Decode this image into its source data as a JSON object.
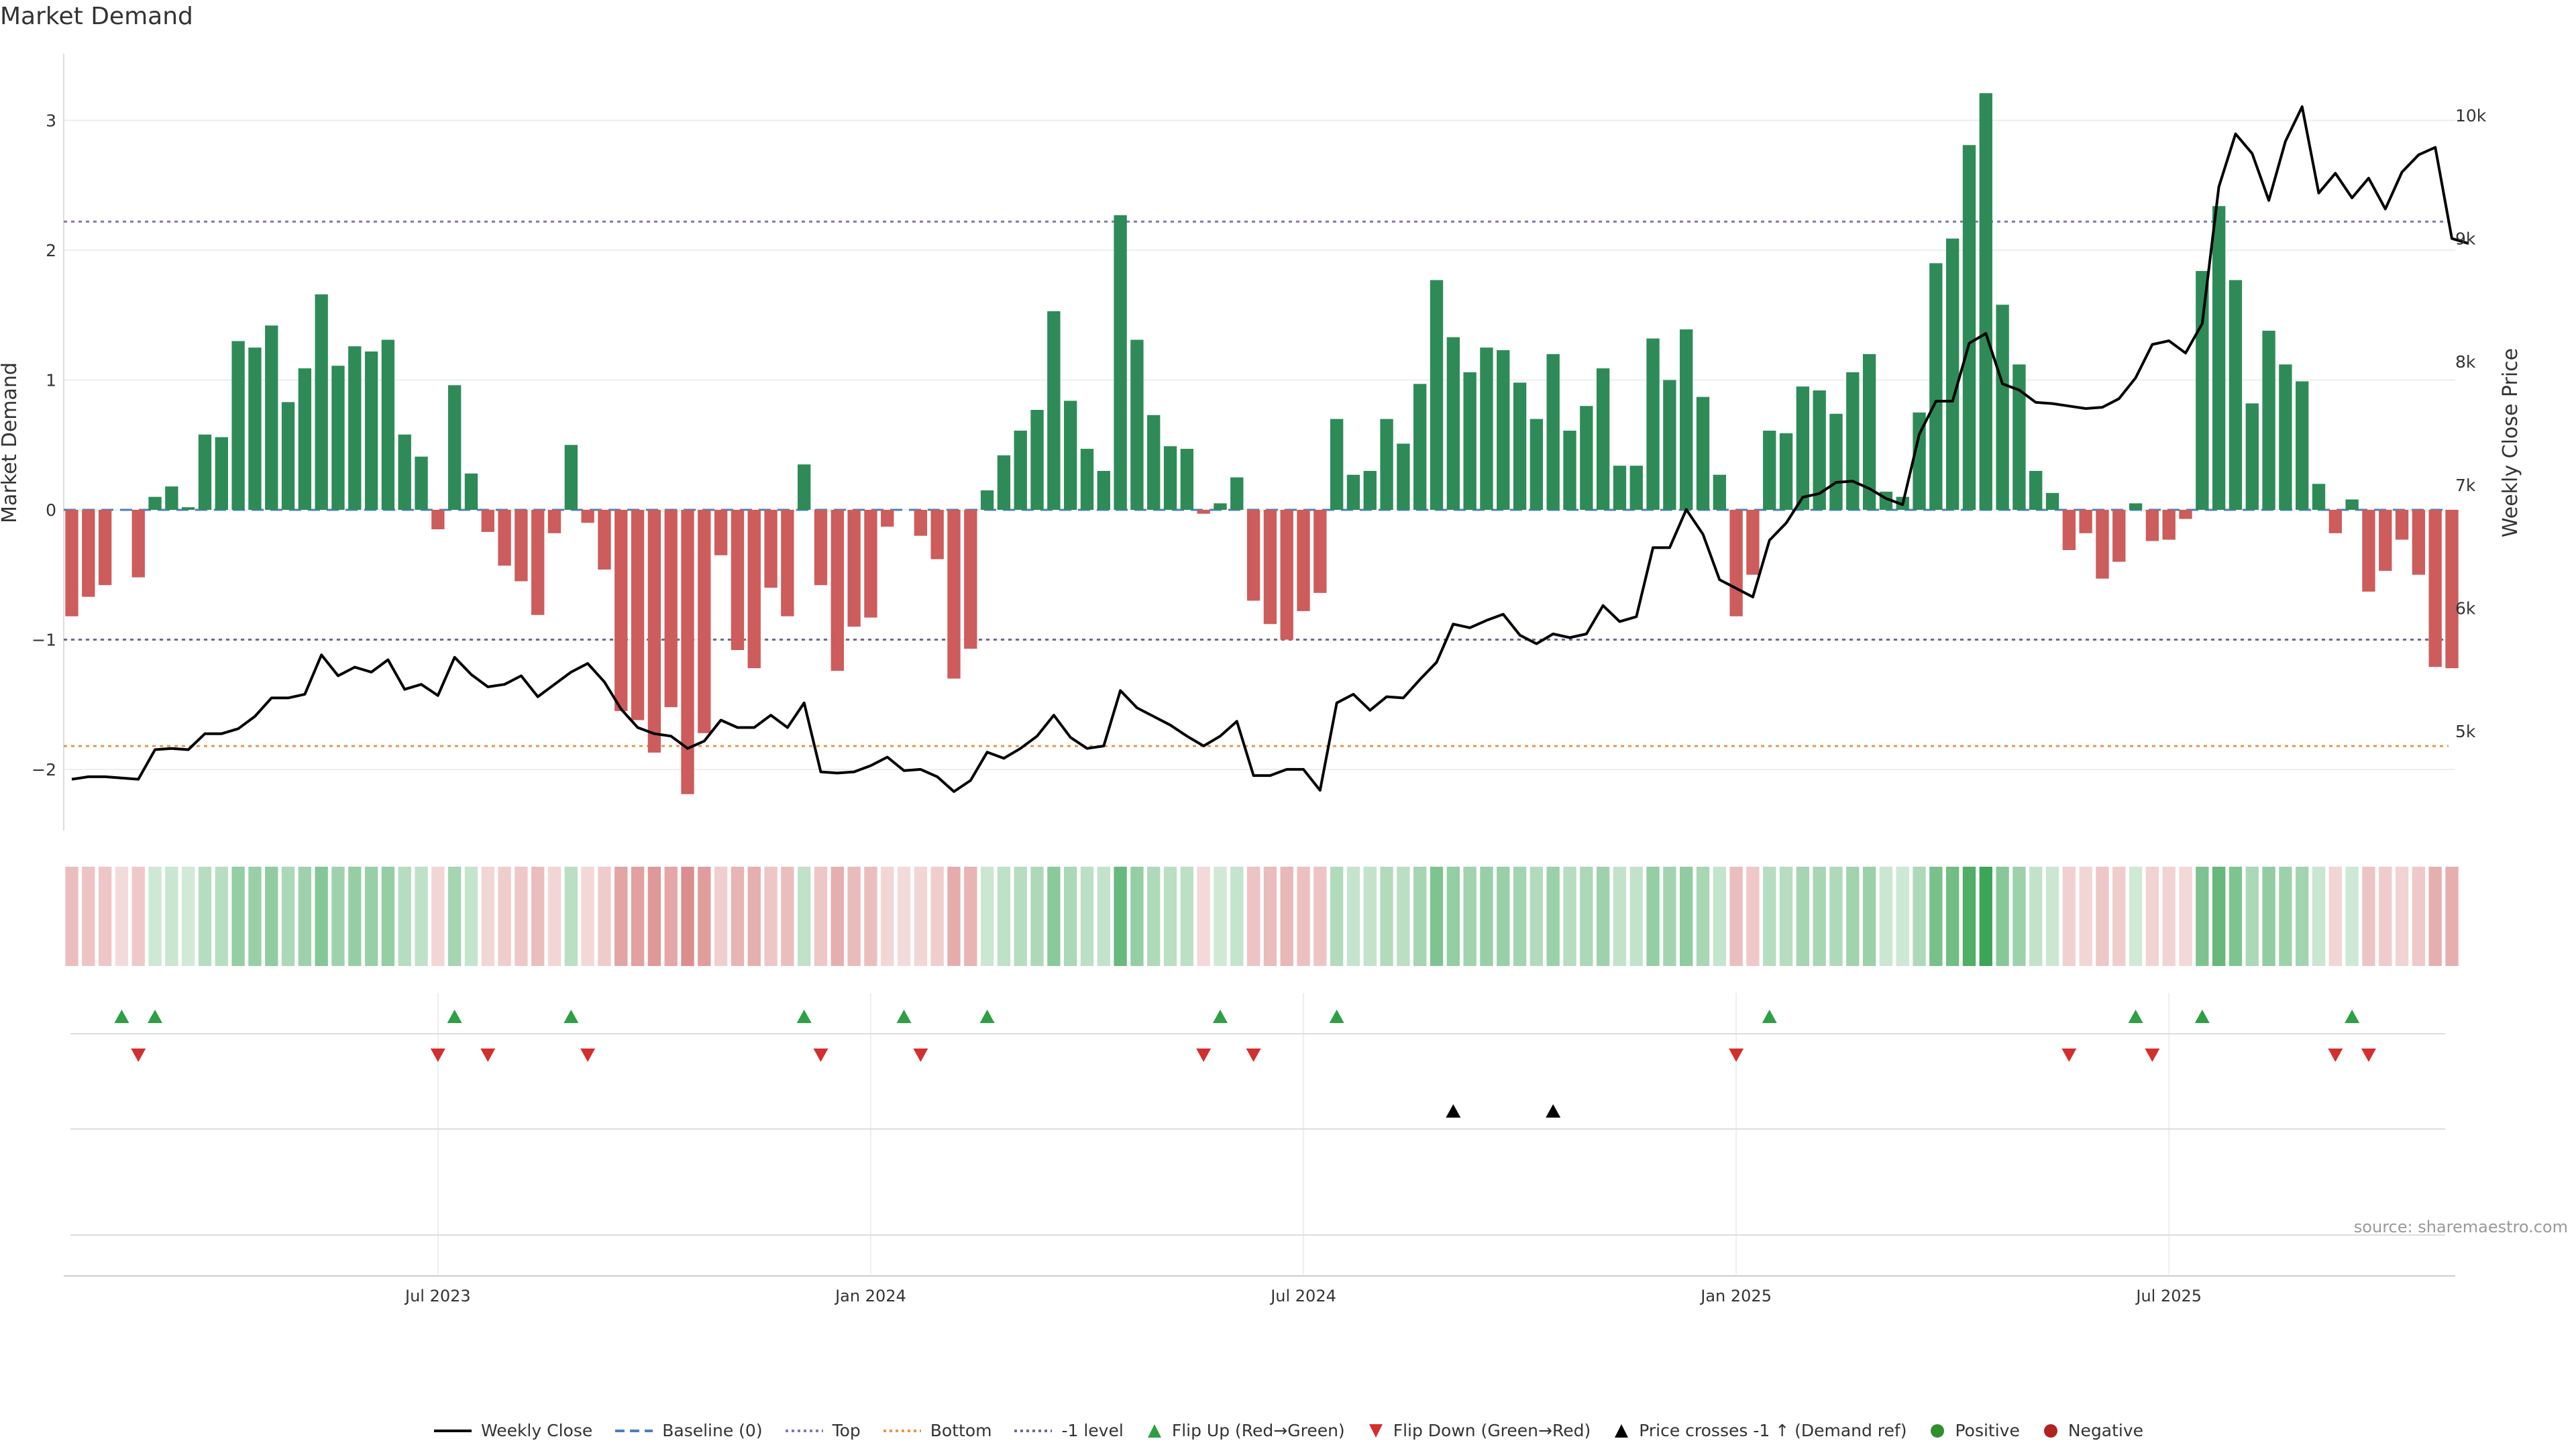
{
  "title": "Market Demand",
  "source": "source: sharemaestro.com",
  "chart_data": {
    "type": "bar",
    "title": "Market Demand",
    "ylabel_left": "Market Demand",
    "ylabel_right": "Weekly Close Price",
    "ylim_left": [
      -2.5,
      3.5
    ],
    "ylim_right": [
      4000,
      10500
    ],
    "yticks_left": [
      -2,
      -1,
      0,
      1,
      2,
      3
    ],
    "yticks_left_labels": [
      "−2",
      "−1",
      "0",
      "1",
      "2",
      "3"
    ],
    "yticks_right": [
      5000,
      6000,
      7000,
      8000,
      9000,
      10000
    ],
    "yticks_right_labels": [
      "5k",
      "6k",
      "7k",
      "8k",
      "9k",
      "10k"
    ],
    "xticks": [
      {
        "week": 22,
        "label": "Jul 2023"
      },
      {
        "week": 48,
        "label": "Jan 2024"
      },
      {
        "week": 74,
        "label": "Jul 2024"
      },
      {
        "week": 100,
        "label": "Jan 2025"
      },
      {
        "week": 126,
        "label": "Jul 2025"
      }
    ],
    "reference_lines": {
      "top": 2.22,
      "bottom": -1.82,
      "minus_one": -1,
      "baseline": 0
    },
    "demand": [
      -0.82,
      -0.67,
      -0.58,
      0.0,
      -0.52,
      0.1,
      0.18,
      0.02,
      0.58,
      0.56,
      1.3,
      1.25,
      1.42,
      0.83,
      1.09,
      1.66,
      1.11,
      1.26,
      1.22,
      1.31,
      0.58,
      0.41,
      -0.15,
      0.96,
      0.28,
      -0.17,
      -0.43,
      -0.55,
      -0.81,
      -0.18,
      0.5,
      -0.1,
      -0.46,
      -1.55,
      -1.62,
      -1.87,
      -1.52,
      -2.19,
      -1.72,
      -0.35,
      -1.08,
      -1.22,
      -0.6,
      -0.82,
      0.35,
      -0.58,
      -1.24,
      -0.9,
      -0.83,
      -0.13,
      0.0,
      -0.2,
      -0.38,
      -1.3,
      -1.07,
      0.15,
      0.42,
      0.61,
      0.77,
      1.53,
      0.84,
      0.47,
      0.3,
      2.27,
      1.31,
      0.73,
      0.49,
      0.47,
      -0.03,
      0.05,
      0.25,
      -0.7,
      -0.88,
      -1.0,
      -0.78,
      -0.64,
      0.7,
      0.27,
      0.3,
      0.7,
      0.51,
      0.97,
      1.77,
      1.33,
      1.06,
      1.25,
      1.23,
      0.98,
      0.7,
      1.2,
      0.61,
      0.8,
      1.09,
      0.34,
      0.34,
      1.32,
      1.0,
      1.39,
      0.87,
      0.27,
      -0.82,
      -0.5,
      0.61,
      0.59,
      0.95,
      0.92,
      0.74,
      1.06,
      1.2,
      0.14,
      0.1,
      0.75,
      1.9,
      2.09,
      2.81,
      3.21,
      1.58,
      1.12,
      0.3,
      0.13,
      -0.31,
      -0.18,
      -0.53,
      -0.4,
      0.05,
      -0.24,
      -0.23,
      -0.07,
      1.84,
      2.34,
      1.77,
      0.82,
      1.38,
      1.12,
      0.99,
      0.2,
      -0.18,
      0.08,
      -0.63,
      -0.47,
      -0.23,
      -0.5,
      -1.21,
      -1.22
    ],
    "weekly_close": [
      4610,
      4630,
      4630,
      4620,
      4610,
      4850,
      4860,
      4850,
      4980,
      4980,
      5020,
      5120,
      5270,
      5270,
      5300,
      5620,
      5450,
      5520,
      5480,
      5580,
      5340,
      5380,
      5290,
      5600,
      5460,
      5360,
      5380,
      5450,
      5280,
      5380,
      5480,
      5550,
      5400,
      5180,
      5030,
      4980,
      4960,
      4860,
      4920,
      5090,
      5030,
      5030,
      5130,
      5030,
      5230,
      4670,
      4660,
      4670,
      4720,
      4790,
      4680,
      4690,
      4630,
      4510,
      4600,
      4830,
      4780,
      4860,
      4960,
      5130,
      4950,
      4860,
      4880,
      5330,
      5190,
      5120,
      5050,
      4960,
      4880,
      4960,
      5080,
      4640,
      4640,
      4690,
      4690,
      4520,
      5230,
      5300,
      5170,
      5280,
      5270,
      5420,
      5560,
      5870,
      5840,
      5900,
      5950,
      5780,
      5710,
      5790,
      5760,
      5790,
      6020,
      5890,
      5930,
      6490,
      6490,
      6800,
      6600,
      6230,
      6160,
      6090,
      6550,
      6690,
      6900,
      6930,
      7020,
      7030,
      6970,
      6890,
      6840,
      7410,
      7680,
      7680,
      8150,
      8230,
      7820,
      7770,
      7670,
      7660,
      7640,
      7620,
      7630,
      7700,
      7870,
      8140,
      8170,
      8070,
      8310,
      9420,
      9850,
      9690,
      9310,
      9790,
      10070,
      9370,
      9530,
      9330,
      9490,
      9240,
      9540,
      9680,
      9740,
      9000,
      8960
    ],
    "flip_up_weeks": [
      3,
      5,
      23,
      30,
      44,
      50,
      55,
      69,
      76,
      102,
      124,
      128,
      137
    ],
    "flip_down_weeks": [
      4,
      22,
      25,
      31,
      45,
      51,
      68,
      71,
      100,
      120,
      125,
      136,
      138
    ],
    "price_cross_weeks": [
      83,
      89
    ]
  },
  "legend": [
    {
      "label": "Weekly Close",
      "symbol": "line",
      "color": "#000000"
    },
    {
      "label": "Baseline (0)",
      "symbol": "dashed",
      "color": "#4a7fbf"
    },
    {
      "label": "Top",
      "symbol": "dotted",
      "color": "#7b79c0"
    },
    {
      "label": "Bottom",
      "symbol": "dotted",
      "color": "#e8954a"
    },
    {
      "label": "-1 level",
      "symbol": "dotted",
      "color": "#6b6b8a"
    },
    {
      "label": "Flip Up (Red→Green)",
      "symbol": "triangle-up",
      "color": "#2ca042"
    },
    {
      "label": "Flip Down (Green→Red)",
      "symbol": "triangle-down",
      "color": "#d32f2f"
    },
    {
      "label": "Price crosses -1 ↑ (Demand ref)",
      "symbol": "triangle-up",
      "color": "#000000"
    },
    {
      "label": "Positive",
      "symbol": "circle",
      "color": "#2f8f2f"
    },
    {
      "label": "Negative",
      "symbol": "circle",
      "color": "#b22222"
    }
  ],
  "colors": {
    "positive_bar": "#2e8b57",
    "negative_bar": "#cd5c5c",
    "strip_positive": "#2e9e4a",
    "strip_negative": "#cd5c5c"
  }
}
